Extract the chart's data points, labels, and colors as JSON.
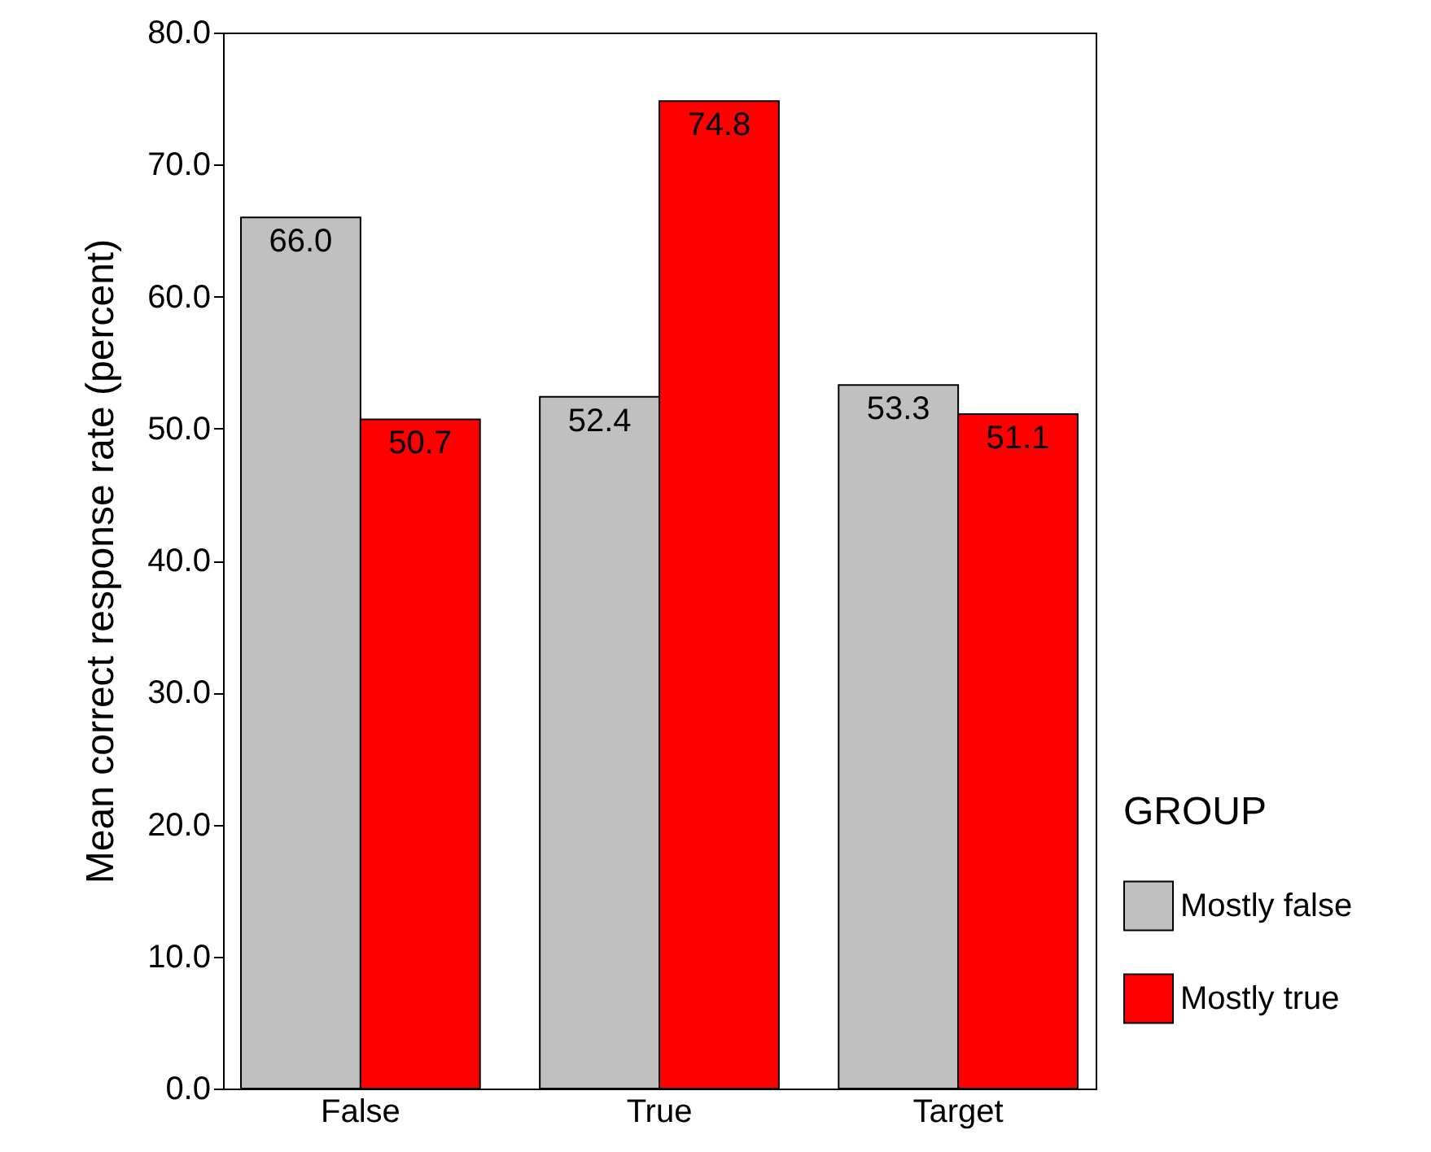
{
  "chart_data": {
    "type": "bar",
    "ylabel": "Mean correct response rate (percent)",
    "legend_title": "GROUP",
    "categories": [
      "False",
      "True",
      "Target"
    ],
    "series": [
      {
        "name": "Mostly false",
        "color": "#c0c0c0",
        "values": [
          66.0,
          52.4,
          53.3
        ],
        "value_labels": [
          "66.0",
          "52.4",
          "53.3"
        ]
      },
      {
        "name": "Mostly true",
        "color": "#ff0000",
        "values": [
          50.7,
          74.8,
          51.1
        ],
        "value_labels": [
          "50.7",
          "74.8",
          "51.1"
        ]
      }
    ],
    "ylim": [
      0,
      80
    ],
    "yticks": [
      {
        "value": 0,
        "label": "0.0"
      },
      {
        "value": 10,
        "label": "10.0"
      },
      {
        "value": 20,
        "label": "20.0"
      },
      {
        "value": 30,
        "label": "30.0"
      },
      {
        "value": 40,
        "label": "40.0"
      },
      {
        "value": 50,
        "label": "50.0"
      },
      {
        "value": 60,
        "label": "60.0"
      },
      {
        "value": 70,
        "label": "70.0"
      },
      {
        "value": 80,
        "label": "80.0"
      }
    ],
    "legend": "right"
  }
}
